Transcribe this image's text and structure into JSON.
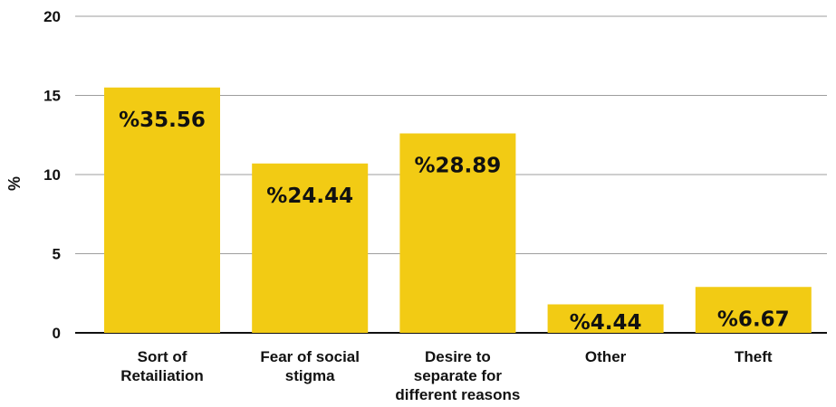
{
  "chart_data": {
    "type": "bar",
    "title": "",
    "xlabel": "",
    "ylabel": "%",
    "ylim": [
      0,
      20
    ],
    "yticks": [
      0,
      5,
      10,
      15,
      20
    ],
    "grid": true,
    "categories": [
      [
        "Sort of",
        "Retailiation"
      ],
      [
        "Fear of social",
        "stigma"
      ],
      [
        "Desire to",
        "separate for",
        "different reasons"
      ],
      [
        "Other"
      ],
      [
        "Theft"
      ]
    ],
    "values": [
      15.5,
      10.7,
      12.6,
      1.8,
      2.9
    ],
    "data_labels": [
      "%35.56",
      "%24.44",
      "%28.89",
      "%4.44",
      "%6.67"
    ],
    "colors": {
      "bar": "#f2cb14",
      "grid": "#9e9e9e",
      "axis": "#111111",
      "text": "#111111"
    }
  }
}
